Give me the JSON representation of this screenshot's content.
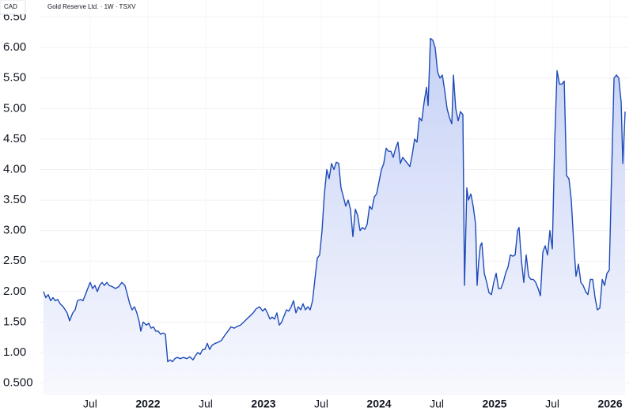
{
  "chart_data": {
    "type": "area",
    "title": "Gold Reserve Ltd. · 1W · TSXV",
    "currency": "CAD",
    "color": "#1e4bb8",
    "fill_top": "#c6d1f5",
    "fill_bottom": "#f8f9fe",
    "grid": true,
    "xlim": [
      2021.062,
      2026.164
    ],
    "ylim": [
      0.3,
      6.78
    ],
    "xticks": [
      {
        "value": 2021.5,
        "label": "Jul"
      },
      2022,
      {
        "value": 2022.5,
        "label": "Jul"
      },
      2023,
      {
        "value": 2023.5,
        "label": "Jul"
      },
      2024,
      {
        "value": 2024.5,
        "label": "Jul"
      },
      2025,
      {
        "value": 2025.5,
        "label": "Jul"
      },
      2026
    ],
    "yticks": [
      {
        "value": 0.5,
        "label": "0.500"
      },
      {
        "value": 1.0,
        "label": "1.00"
      },
      {
        "value": 1.5,
        "label": "1.50"
      },
      {
        "value": 2.0,
        "label": "2.00"
      },
      {
        "value": 2.5,
        "label": "2.50"
      },
      {
        "value": 3.0,
        "label": "3.00"
      },
      {
        "value": 3.5,
        "label": "3.50"
      },
      {
        "value": 4.0,
        "label": "4.00"
      },
      {
        "value": 4.5,
        "label": "4.50"
      },
      {
        "value": 5.0,
        "label": "5.00"
      },
      {
        "value": 5.5,
        "label": "5.50"
      },
      {
        "value": 6.0,
        "label": "6.00"
      },
      {
        "value": 6.5,
        "label": "6.50"
      }
    ],
    "x": [
      2021.096,
      2021.116,
      2021.137,
      2021.158,
      2021.178,
      2021.199,
      2021.219,
      2021.24,
      2021.267,
      2021.301,
      2021.322,
      2021.349,
      2021.37,
      2021.39,
      2021.418,
      2021.438,
      2021.459,
      2021.479,
      2021.5,
      2021.521,
      2021.541,
      2021.562,
      2021.582,
      2021.603,
      2021.623,
      2021.644,
      2021.664,
      2021.692,
      2021.719,
      2021.747,
      2021.774,
      2021.801,
      2021.822,
      2021.842,
      2021.863,
      2021.884,
      2021.904,
      2021.925,
      2021.938,
      2021.959,
      2021.986,
      2022.007,
      2022.027,
      2022.048,
      2022.068,
      2022.089,
      2022.11,
      2022.13,
      2022.151,
      2022.171,
      2022.192,
      2022.212,
      2022.233,
      2022.253,
      2022.281,
      2022.308,
      2022.336,
      2022.363,
      2022.39,
      2022.411,
      2022.432,
      2022.452,
      2022.473,
      2022.493,
      2022.514,
      2022.534,
      2022.555,
      2022.582,
      2022.61,
      2022.637,
      2022.664,
      2022.692,
      2022.719,
      2022.747,
      2022.774,
      2022.801,
      2022.829,
      2022.856,
      2022.884,
      2022.911,
      2022.938,
      2022.966,
      2022.993,
      2023.014,
      2023.034,
      2023.055,
      2023.075,
      2023.096,
      2023.116,
      2023.137,
      2023.158,
      2023.178,
      2023.199,
      2023.219,
      2023.24,
      2023.26,
      2023.281,
      2023.301,
      2023.322,
      2023.342,
      2023.363,
      2023.384,
      2023.404,
      2023.425,
      2023.445,
      2023.466,
      2023.486,
      2023.507,
      2023.527,
      2023.548,
      2023.568,
      2023.589,
      2023.61,
      2023.63,
      2023.651,
      2023.671,
      2023.692,
      2023.712,
      2023.733,
      2023.753,
      2023.774,
      2023.795,
      2023.815,
      2023.836,
      2023.856,
      2023.877,
      2023.897,
      2023.918,
      2023.938,
      2023.959,
      2023.979,
      2024.0,
      2024.021,
      2024.041,
      2024.062,
      2024.082,
      2024.103,
      2024.123,
      2024.144,
      2024.164,
      2024.185,
      2024.205,
      2024.226,
      2024.247,
      2024.267,
      2024.288,
      2024.308,
      2024.329,
      2024.349,
      2024.37,
      2024.39,
      2024.411,
      2024.425,
      2024.445,
      2024.466,
      2024.486,
      2024.507,
      2024.527,
      2024.548,
      2024.568,
      2024.589,
      2024.61,
      2024.63,
      2024.644,
      2024.664,
      2024.685,
      2024.705,
      2024.726,
      2024.74,
      2024.76,
      2024.774,
      2024.795,
      2024.815,
      2024.836,
      2024.849,
      2024.863,
      2024.877,
      2024.89,
      2024.911,
      2024.932,
      2024.952,
      2024.973,
      2024.993,
      2025.014,
      2025.034,
      2025.055,
      2025.075,
      2025.096,
      2025.116,
      2025.137,
      2025.158,
      2025.178,
      2025.199,
      2025.212,
      2025.233,
      2025.253,
      2025.274,
      2025.295,
      2025.315,
      2025.336,
      2025.356,
      2025.377,
      2025.397,
      2025.418,
      2025.438,
      2025.459,
      2025.479,
      2025.5,
      2025.521,
      2025.541,
      2025.562,
      2025.582,
      2025.603,
      2025.623,
      2025.644,
      2025.664,
      2025.685,
      2025.705,
      2025.726,
      2025.747,
      2025.767,
      2025.788,
      2025.808,
      2025.829,
      2025.849,
      2025.87,
      2025.89,
      2025.911,
      2025.932,
      2025.952,
      2025.973,
      2025.993,
      2026.014,
      2026.034,
      2026.055,
      2026.075,
      2026.096,
      2026.11,
      2026.13
    ],
    "values": [
      2.0,
      1.9,
      1.95,
      1.85,
      1.9,
      1.85,
      1.87,
      1.8,
      1.75,
      1.65,
      1.52,
      1.65,
      1.7,
      1.85,
      1.87,
      1.85,
      1.95,
      2.05,
      2.15,
      2.05,
      2.1,
      2.0,
      2.1,
      2.15,
      2.1,
      2.15,
      2.1,
      2.08,
      2.05,
      2.08,
      2.15,
      2.1,
      1.95,
      1.8,
      1.7,
      1.75,
      1.65,
      1.5,
      1.35,
      1.5,
      1.45,
      1.48,
      1.4,
      1.42,
      1.35,
      1.35,
      1.3,
      1.32,
      1.3,
      0.85,
      0.88,
      0.85,
      0.9,
      0.92,
      0.9,
      0.92,
      0.9,
      0.93,
      0.88,
      0.95,
      1.0,
      0.97,
      1.05,
      1.05,
      1.15,
      1.05,
      1.12,
      1.15,
      1.17,
      1.2,
      1.28,
      1.35,
      1.42,
      1.4,
      1.43,
      1.45,
      1.5,
      1.55,
      1.6,
      1.65,
      1.72,
      1.75,
      1.68,
      1.72,
      1.65,
      1.55,
      1.58,
      1.55,
      1.65,
      1.45,
      1.5,
      1.6,
      1.7,
      1.68,
      1.75,
      1.85,
      1.65,
      1.75,
      1.7,
      1.8,
      1.7,
      1.75,
      1.7,
      1.85,
      2.2,
      2.55,
      2.6,
      3.0,
      3.6,
      4.0,
      3.85,
      4.1,
      4.0,
      4.12,
      4.1,
      3.7,
      3.55,
      3.4,
      3.5,
      3.35,
      2.9,
      3.35,
      3.25,
      3.0,
      3.05,
      3.02,
      3.1,
      3.4,
      3.35,
      3.55,
      3.6,
      3.8,
      4.0,
      4.1,
      4.35,
      4.3,
      4.3,
      4.2,
      4.35,
      4.45,
      4.1,
      4.2,
      4.15,
      4.1,
      4.05,
      4.25,
      4.5,
      4.45,
      4.85,
      4.8,
      5.1,
      5.35,
      5.05,
      6.15,
      6.12,
      6.0,
      5.6,
      5.5,
      5.55,
      5.3,
      5.0,
      4.85,
      4.75,
      5.55,
      5.0,
      4.8,
      4.95,
      4.9,
      2.1,
      3.7,
      3.5,
      3.6,
      3.4,
      3.1,
      2.1,
      2.5,
      2.75,
      2.8,
      2.3,
      2.15,
      1.98,
      1.95,
      2.15,
      2.3,
      2.05,
      2.05,
      2.15,
      2.3,
      2.4,
      2.6,
      2.58,
      2.6,
      3.0,
      3.05,
      2.5,
      2.15,
      2.6,
      2.25,
      2.2,
      2.2,
      2.15,
      2.05,
      1.93,
      2.65,
      2.75,
      2.6,
      3.0,
      2.7,
      4.5,
      5.62,
      5.4,
      5.4,
      5.45,
      3.9,
      3.85,
      3.5,
      2.8,
      2.25,
      2.45,
      2.15,
      2.1,
      2.0,
      1.95,
      2.2,
      2.2,
      1.9,
      1.7,
      1.73,
      2.2,
      2.1,
      2.3,
      2.35,
      4.0,
      5.5,
      5.55,
      5.5,
      5.1,
      4.1,
      4.95
    ]
  }
}
